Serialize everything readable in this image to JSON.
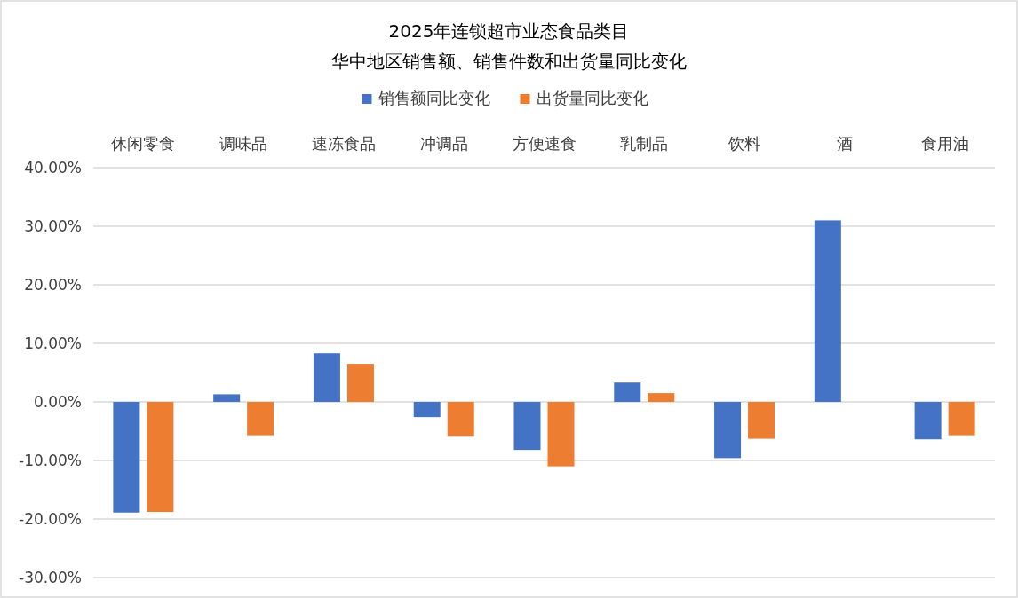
{
  "chart_data": {
    "type": "bar",
    "title": "2025年连锁超市业态食品类目",
    "subtitle": "华中地区销售额、销售件数和出货量同比变化",
    "categories": [
      "休闲零食",
      "调味品",
      "速冻食品",
      "冲调品",
      "方便速食",
      "乳制品",
      "饮料",
      "酒",
      "食用油"
    ],
    "series": [
      {
        "name": "销售额同比变化",
        "color": "#4472c4",
        "values": [
          -18.9,
          1.3,
          8.3,
          -2.6,
          -8.2,
          3.3,
          -9.6,
          31.0,
          -6.4
        ]
      },
      {
        "name": "出货量同比变化",
        "color": "#ed7d31",
        "values": [
          -18.8,
          -5.7,
          6.5,
          -5.8,
          -11.0,
          1.5,
          -6.3,
          null,
          -5.7
        ]
      }
    ],
    "ylim": [
      -30,
      40
    ],
    "yticks": [
      {
        "value": -30,
        "label": "-30.00%"
      },
      {
        "value": -20,
        "label": "-20.00%"
      },
      {
        "value": -10,
        "label": "-10.00%"
      },
      {
        "value": 0,
        "label": "0.00%"
      },
      {
        "value": 10,
        "label": "10.00%"
      },
      {
        "value": 20,
        "label": "20.00%"
      },
      {
        "value": 30,
        "label": "30.00%"
      },
      {
        "value": 40,
        "label": "40.00%"
      }
    ],
    "grid": "y",
    "legend": "top"
  }
}
